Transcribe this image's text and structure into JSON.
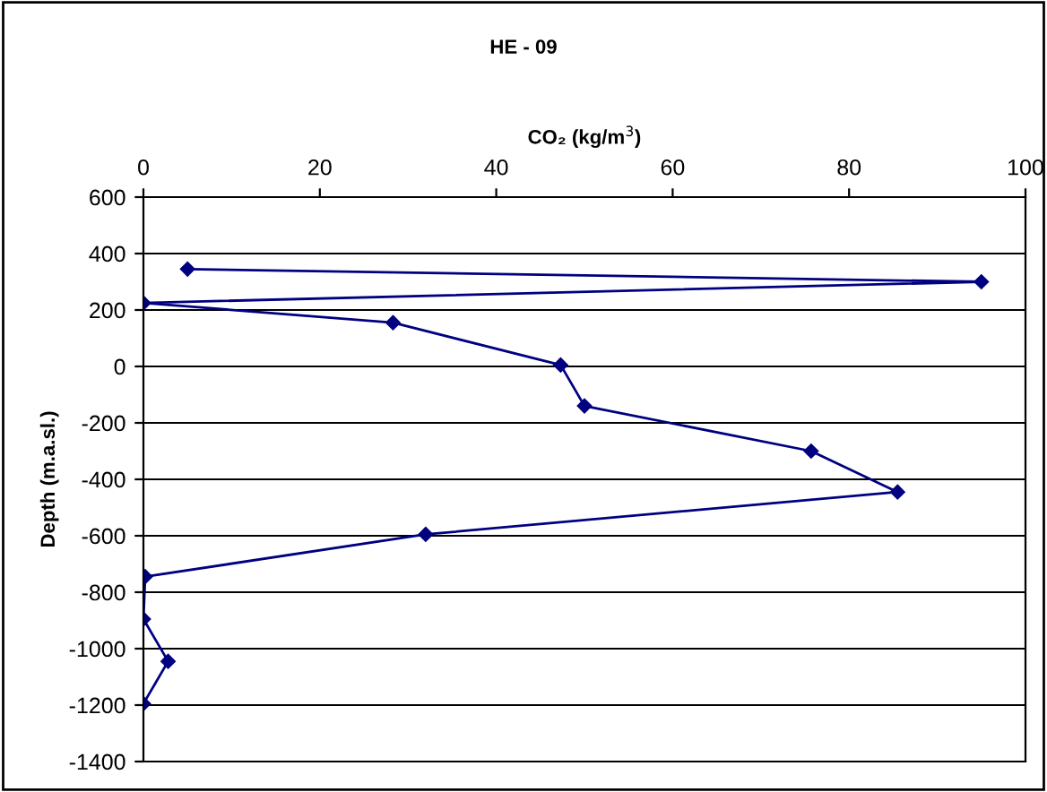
{
  "chart_data": {
    "type": "line",
    "title": "HE - 09",
    "xlabel": "CO₂ (kg/m$^{3}$)",
    "ylabel": "Depth (m.a.sl.)",
    "series": [
      {
        "color": "#000080",
        "x": [
          5,
          95,
          0,
          28.3,
          47.3,
          50,
          75.7,
          85.5,
          32,
          0.2,
          0,
          2.8,
          0
        ],
        "values": [
          345,
          300,
          225,
          155,
          5,
          -140,
          -300,
          -445,
          -595,
          -745,
          -895,
          -1045,
          -1195
        ]
      }
    ],
    "xlim": [
      0,
      100
    ],
    "xticks": [
      0,
      20,
      40,
      60,
      80,
      100
    ],
    "ylim": [
      -1400,
      600
    ],
    "yticks": [
      -1400,
      -1200,
      -1000,
      -800,
      -600,
      -400,
      -200,
      0,
      200,
      400,
      600
    ],
    "grid": "y",
    "marker": "diamond",
    "line_style": "solid",
    "legend": false
  }
}
